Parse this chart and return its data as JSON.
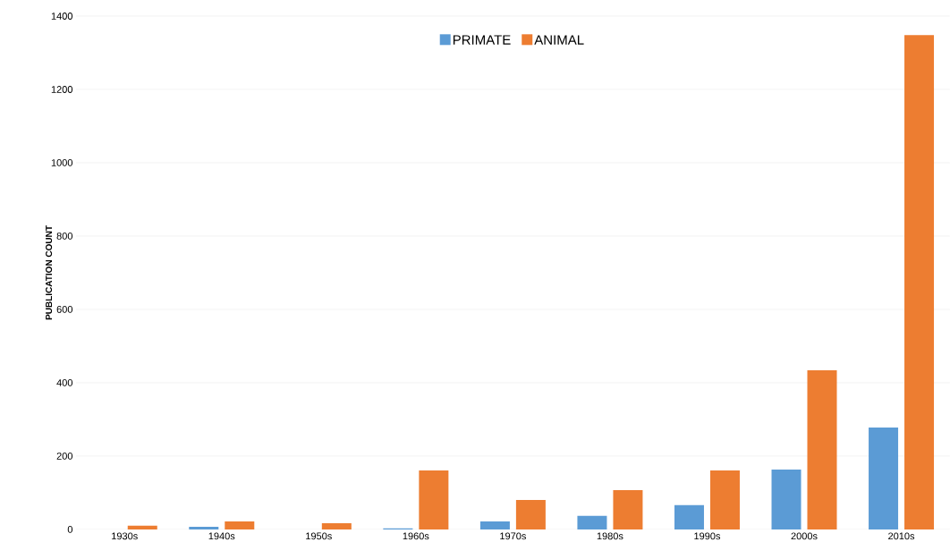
{
  "chart_data": {
    "type": "bar",
    "ylabel": "PUBLICATION COUNT",
    "categories": [
      "1930s",
      "1940s",
      "1950s",
      "1960s",
      "1970s",
      "1980s",
      "1990s",
      "2000s",
      "2010s"
    ],
    "series": [
      {
        "name": "PRIMATE",
        "color": "#5b9bd5",
        "values": [
          0,
          7,
          0,
          3,
          22,
          37,
          66,
          163,
          278
        ]
      },
      {
        "name": "ANIMAL",
        "color": "#ed7d31",
        "values": [
          10,
          22,
          17,
          161,
          80,
          107,
          161,
          434,
          1348
        ]
      }
    ],
    "ylim": [
      0,
      1400
    ],
    "yticks": [
      0,
      200,
      400,
      600,
      800,
      1000,
      1200,
      1400
    ],
    "grid": "y",
    "legend": "top"
  }
}
